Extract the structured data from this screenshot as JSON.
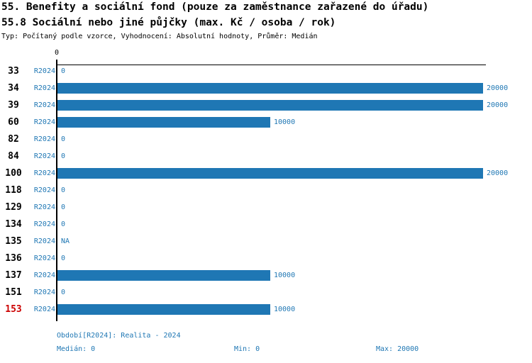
{
  "header": {
    "title": "55. Benefity a sociální fond (pouze za zaměstnance zařazené do úřadu)",
    "subtitle": "55.8 Sociální nebo jiné půjčky (max. Kč / osoba / rok)",
    "meta": "Typ: Počítaný podle vzorce, Vyhodnocení: Absolutní hodnoty, Průměr: Medián"
  },
  "chart_data": {
    "type": "bar",
    "orientation": "horizontal",
    "title": "55.8 Sociální nebo jiné půjčky (max. Kč / osoba / rok)",
    "axis": {
      "xlim": [
        0,
        20000
      ],
      "tick_labels": [
        "0"
      ],
      "grid": false
    },
    "series_label": "R2024",
    "categories": [
      "33",
      "34",
      "39",
      "60",
      "82",
      "84",
      "100",
      "118",
      "129",
      "134",
      "135",
      "136",
      "137",
      "151",
      "153"
    ],
    "values": [
      0,
      20000,
      20000,
      10000,
      0,
      0,
      20000,
      0,
      0,
      0,
      null,
      0,
      10000,
      0,
      10000
    ],
    "value_labels": [
      "0",
      "20000",
      "20000",
      "10000",
      "0",
      "0",
      "20000",
      "0",
      "0",
      "0",
      "NA",
      "0",
      "10000",
      "0",
      "10000"
    ],
    "highlighted_category": "153",
    "colors": {
      "bar": "#1f77b4",
      "blue_text": "#1f77b4",
      "category_text": "#000000",
      "highlight_text": "#cc0000",
      "axis": "#000000"
    }
  },
  "footer": {
    "period": "Období[R2024]: Realita - 2024",
    "median": "Medián: 0",
    "min": "Min: 0",
    "max": "Max: 20000"
  }
}
